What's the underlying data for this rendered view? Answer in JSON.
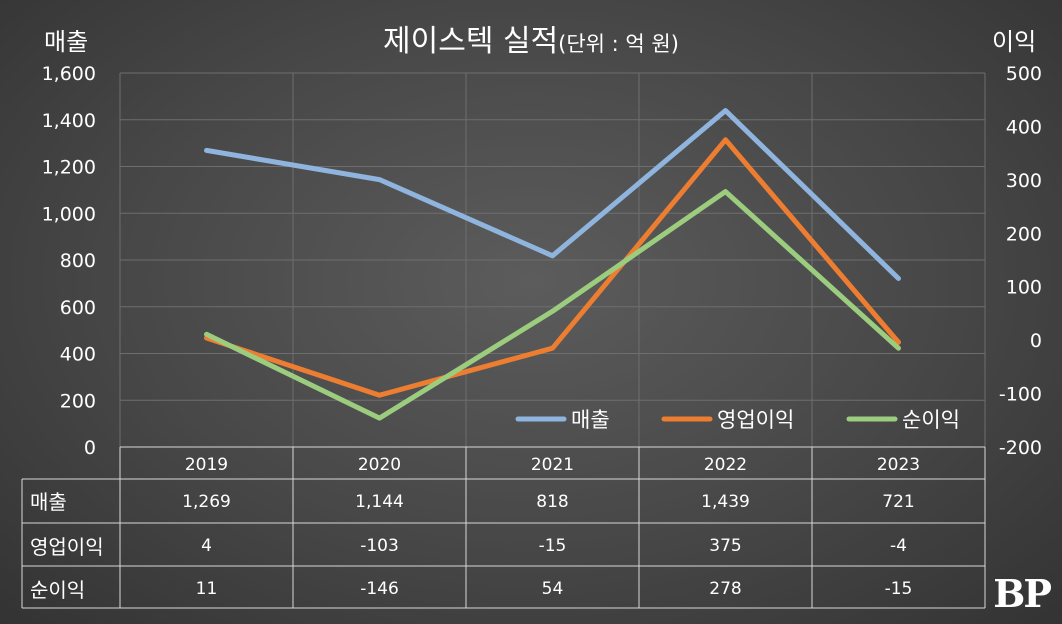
{
  "chart_data": {
    "type": "line",
    "title": "제이스텍 실적",
    "subtitle": "(단위 : 억 원)",
    "ylabel_left": "매출",
    "ylabel_right": "이익",
    "categories": [
      "2019",
      "2020",
      "2021",
      "2022",
      "2023"
    ],
    "ylim_left": [
      0,
      1600
    ],
    "yticks_left": [
      "0",
      "200",
      "400",
      "600",
      "800",
      "1,000",
      "1,200",
      "1,400",
      "1,600"
    ],
    "ylim_right": [
      -200,
      500
    ],
    "yticks_right": [
      "-200",
      "-100",
      "0",
      "100",
      "200",
      "300",
      "400",
      "500"
    ],
    "series": [
      {
        "name": "매출",
        "axis": "left",
        "color": "#8fb4dd",
        "values": [
          1269,
          1144,
          818,
          1439,
          721
        ]
      },
      {
        "name": "영업이익",
        "axis": "right",
        "color": "#ed7d31",
        "values": [
          4,
          -103,
          -15,
          375,
          -4
        ]
      },
      {
        "name": "순이익",
        "axis": "right",
        "color": "#9ccc7e",
        "values": [
          11,
          -146,
          54,
          278,
          -15
        ]
      }
    ],
    "table": {
      "rows": [
        {
          "label": "매출",
          "cells": [
            "1,269",
            "1,144",
            "818",
            "1,439",
            "721"
          ]
        },
        {
          "label": "영업이익",
          "cells": [
            "4",
            "-103",
            "-15",
            "375",
            "-4"
          ]
        },
        {
          "label": "순이익",
          "cells": [
            "11",
            "-146",
            "54",
            "278",
            "-15"
          ]
        }
      ]
    }
  },
  "watermark": "BP"
}
